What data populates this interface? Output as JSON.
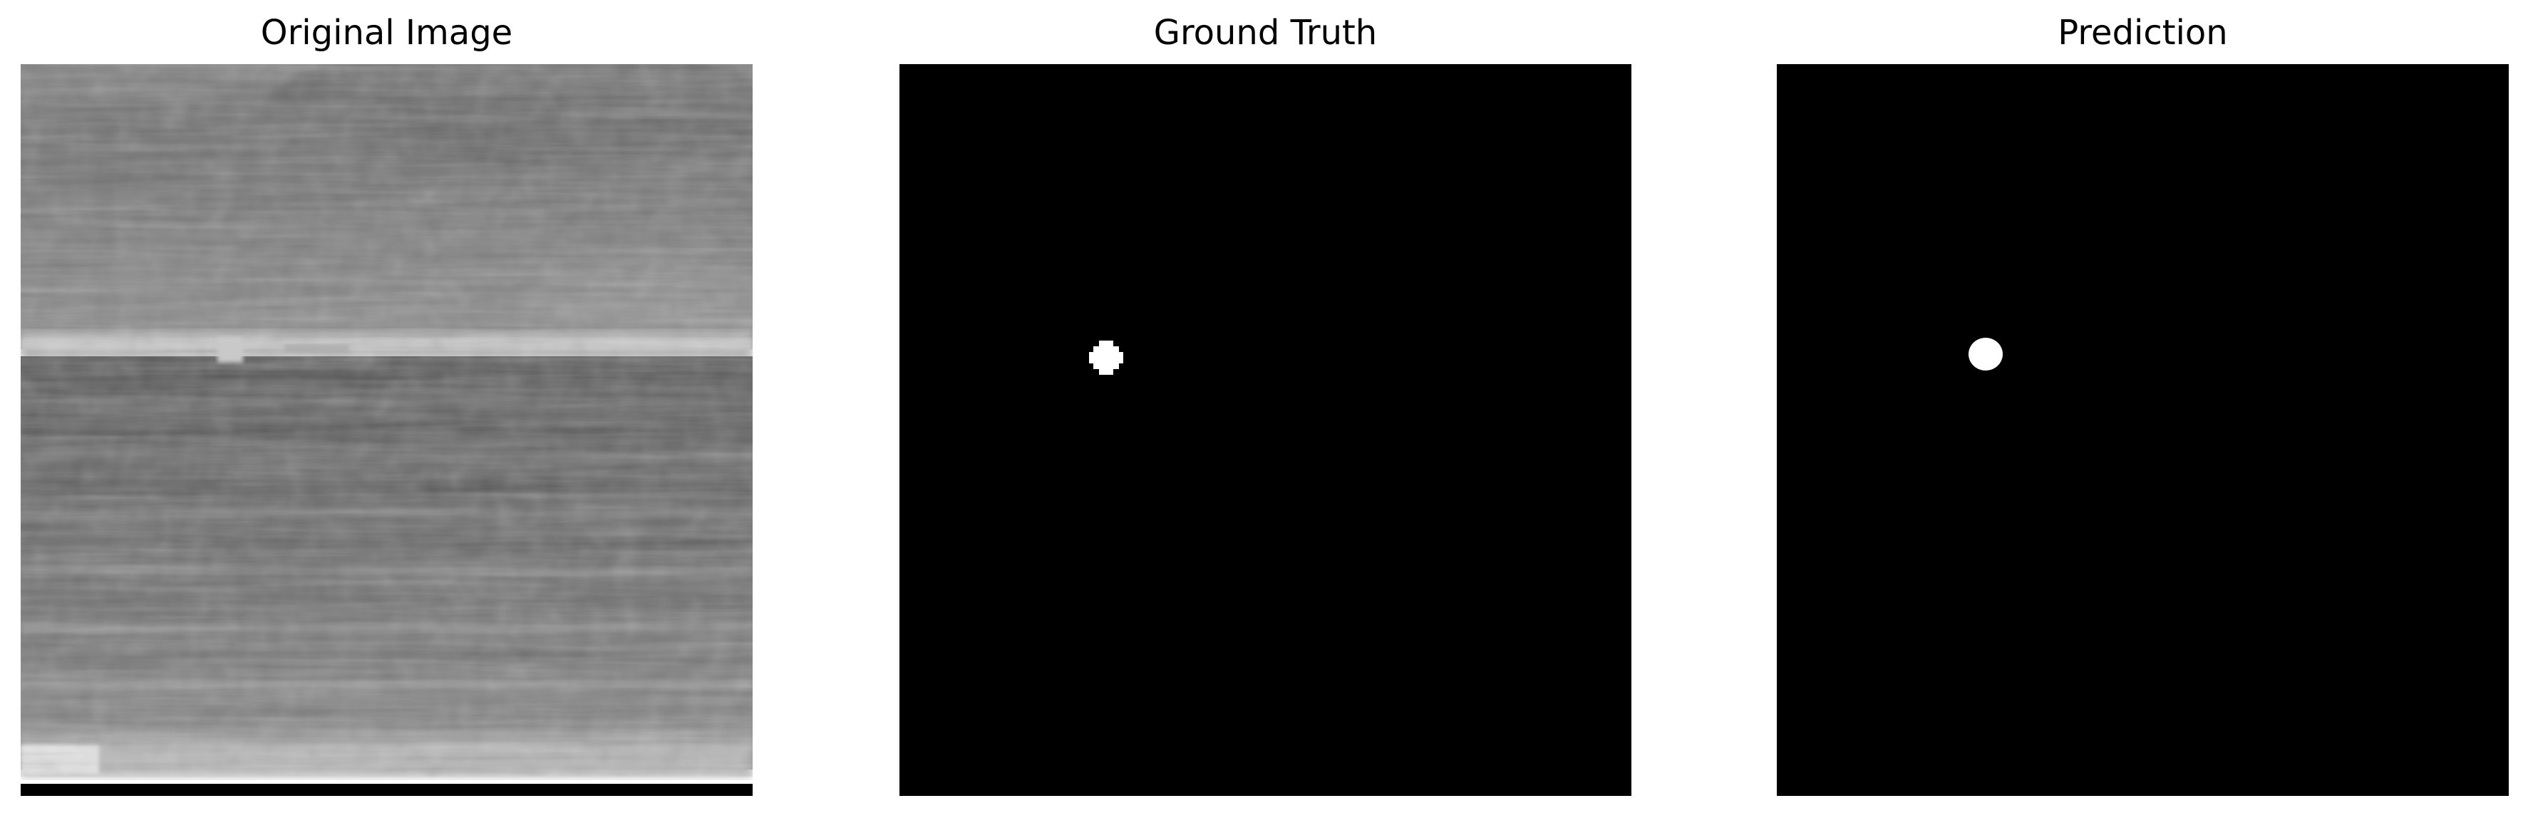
{
  "figure": {
    "panels": [
      {
        "title": "Original Image"
      },
      {
        "title": "Ground Truth"
      },
      {
        "title": "Prediction"
      }
    ]
  },
  "colors": {
    "background": "#ffffff",
    "mask_background": "#000000",
    "mask_foreground": "#ffffff",
    "infrared_sky": "#7a7a7a",
    "infrared_horizon": "#c8c8c8",
    "infrared_sea": "#585858",
    "infrared_bottom_bar": "#000000"
  }
}
